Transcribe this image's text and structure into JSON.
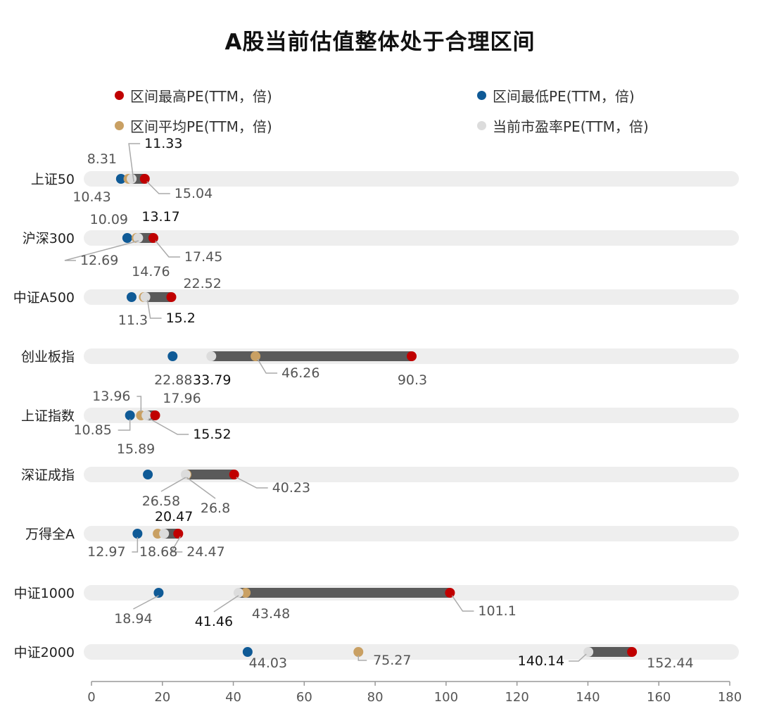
{
  "title": "A股当前估值整体处于合理区间",
  "colors": {
    "max": "#c00000",
    "min": "#0f5a96",
    "avg": "#c9a063",
    "current": "#dcdcdc",
    "track": "#eeeeee",
    "range_bar": "#5a5a5a",
    "axis": "#999999",
    "leader": "#aaaaaa"
  },
  "legend": [
    {
      "key": "max",
      "label": "区间最高PE(TTM，倍)"
    },
    {
      "key": "min",
      "label": "区间最低PE(TTM，倍)"
    },
    {
      "key": "avg",
      "label": "区间平均PE(TTM，倍)"
    },
    {
      "key": "current",
      "label": "当前市盈率PE(TTM，倍)"
    }
  ],
  "chart_data": {
    "type": "dot-range",
    "title": "A股当前估值整体处于合理区间",
    "xlim": [
      0,
      180
    ],
    "xticks": [
      0,
      20,
      40,
      60,
      80,
      100,
      120,
      140,
      160,
      180
    ],
    "grid": false,
    "legend_position": "top",
    "categories": [
      "上证50",
      "沪深300",
      "中证A500",
      "创业板指",
      "上证指数",
      "深证成指",
      "万得全A",
      "中证1000",
      "中证2000"
    ],
    "series": [
      {
        "key": "max",
        "name": "区间最高PE(TTM，倍)",
        "values": [
          15.04,
          17.45,
          22.52,
          90.3,
          17.96,
          40.23,
          24.47,
          101.1,
          152.44
        ]
      },
      {
        "key": "min",
        "name": "区间最低PE(TTM，倍)",
        "values": [
          8.31,
          10.09,
          11.3,
          22.88,
          10.85,
          15.89,
          12.97,
          18.94,
          44.03
        ]
      },
      {
        "key": "avg",
        "name": "区间平均PE(TTM，倍)",
        "values": [
          10.43,
          12.69,
          14.76,
          46.26,
          13.96,
          26.8,
          18.68,
          43.48,
          75.27
        ]
      },
      {
        "key": "current",
        "name": "当前市盈率PE(TTM，倍)",
        "values": [
          11.33,
          13.17,
          15.2,
          33.79,
          15.52,
          26.58,
          20.47,
          41.46,
          140.14
        ]
      }
    ]
  }
}
